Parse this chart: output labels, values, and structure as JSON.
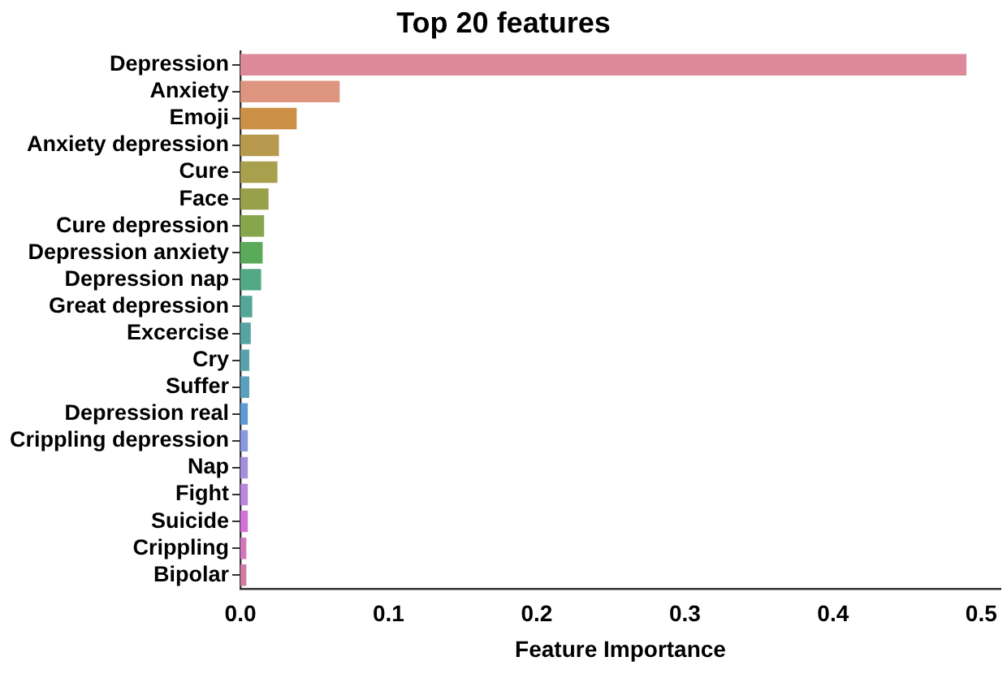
{
  "chart_data": {
    "type": "bar",
    "orientation": "horizontal",
    "title": "Top 20 features",
    "xlabel": "Feature Importance",
    "categories": [
      "Depression",
      "Anxiety",
      "Emoji",
      "Anxiety depression",
      "Cure",
      "Face",
      "Cure depression",
      "Depression anxiety",
      "Depression nap",
      "Great depression",
      "Excercise",
      "Cry",
      "Suffer",
      "Depression real",
      "Crippling depression",
      "Nap",
      "Fight",
      "Suicide",
      "Crippling",
      "Bipolar"
    ],
    "values": [
      0.49,
      0.067,
      0.038,
      0.026,
      0.025,
      0.019,
      0.016,
      0.015,
      0.014,
      0.008,
      0.007,
      0.006,
      0.006,
      0.005,
      0.005,
      0.005,
      0.005,
      0.005,
      0.004,
      0.004
    ],
    "colors": [
      "#dc8a9a",
      "#dd9580",
      "#cc9146",
      "#b89a4e",
      "#a8a04c",
      "#99a04c",
      "#86a64c",
      "#5aaa5a",
      "#52a884",
      "#54a696",
      "#57a5a3",
      "#59a2ad",
      "#5a9fbb",
      "#5e9bd6",
      "#8898df",
      "#a290dc",
      "#b987dd",
      "#d272d6",
      "#d277bd",
      "#d07aa4"
    ],
    "xlim": [
      0,
      0.513
    ],
    "xticks": [
      {
        "value": 0,
        "label": "0.0"
      },
      {
        "value": 0.1,
        "label": "0.1"
      },
      {
        "value": 0.2,
        "label": "0.2"
      },
      {
        "value": 0.3,
        "label": "0.3"
      },
      {
        "value": 0.4,
        "label": "0.4"
      },
      {
        "value": 0.5,
        "label": "0.5"
      }
    ],
    "grid": false,
    "legend": false
  }
}
